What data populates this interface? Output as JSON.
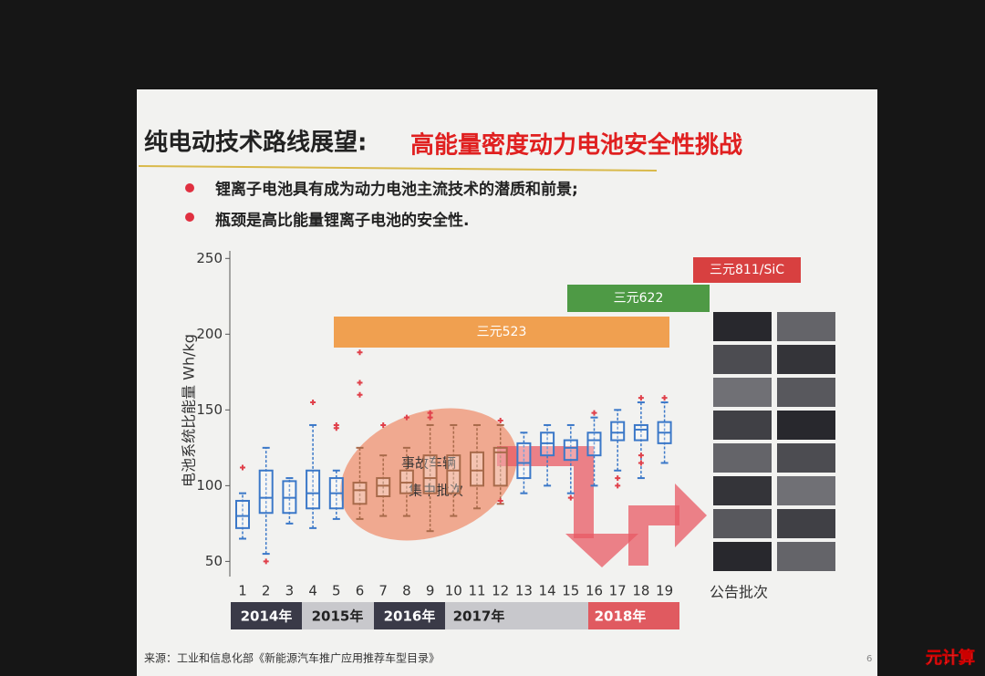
{
  "chart_data": {
    "type": "box",
    "title": "纯电动技术路线展望:",
    "title_highlight": "高能量密度动力电池安全性挑战",
    "bullets": [
      "锂离子电池具有成为动力电池主流技术的潜质和前景;",
      "瓶颈是高比能量锂离子电池的安全性."
    ],
    "y_label": "电池系统比能量 Wh/kg",
    "x_label": "公告批次",
    "annotation": [
      "事故车辆",
      "集中批次"
    ],
    "material_tags": [
      "三元523",
      "三元622",
      "三元811/SiC"
    ],
    "years": [
      "2014年",
      "2015年",
      "2016年",
      "2017年",
      "2018年"
    ],
    "source": "来源：工业和信息化部《新能源汽车推广应用推荐车型目录》",
    "page_number": "6",
    "watermark": "元计算",
    "ylim": [
      40,
      255
    ],
    "yticks": [
      50,
      100,
      150,
      200,
      250
    ],
    "categories": [
      "1",
      "2",
      "3",
      "4",
      "5",
      "6",
      "7",
      "8",
      "9",
      "10",
      "11",
      "12",
      "13",
      "14",
      "15",
      "16",
      "17",
      "18",
      "19"
    ],
    "boxes": [
      {
        "min": 65,
        "q1": 72,
        "median": 80,
        "q3": 90,
        "max": 95,
        "outliers": [
          112
        ],
        "color": "#3b78c8"
      },
      {
        "min": 55,
        "q1": 82,
        "median": 92,
        "q3": 110,
        "max": 125,
        "outliers": [
          50
        ],
        "color": "#3b78c8"
      },
      {
        "min": 75,
        "q1": 82,
        "median": 92,
        "q3": 103,
        "max": 105,
        "outliers": [],
        "color": "#3b78c8"
      },
      {
        "min": 72,
        "q1": 85,
        "median": 95,
        "q3": 110,
        "max": 140,
        "outliers": [
          155
        ],
        "color": "#3b78c8"
      },
      {
        "min": 78,
        "q1": 85,
        "median": 95,
        "q3": 105,
        "max": 110,
        "outliers": [
          138,
          140
        ],
        "color": "#3b78c8"
      },
      {
        "min": 78,
        "q1": 88,
        "median": 97,
        "q3": 102,
        "max": 125,
        "outliers": [
          188,
          168,
          160
        ],
        "color": "#a86a4a"
      },
      {
        "min": 80,
        "q1": 93,
        "median": 100,
        "q3": 105,
        "max": 120,
        "outliers": [
          140
        ],
        "color": "#a86a4a"
      },
      {
        "min": 80,
        "q1": 95,
        "median": 102,
        "q3": 110,
        "max": 125,
        "outliers": [
          145
        ],
        "color": "#a86a4a"
      },
      {
        "min": 70,
        "q1": 95,
        "median": 105,
        "q3": 120,
        "max": 140,
        "outliers": [
          145,
          148
        ],
        "color": "#a86a4a"
      },
      {
        "min": 80,
        "q1": 95,
        "median": 110,
        "q3": 120,
        "max": 140,
        "outliers": [],
        "color": "#a86a4a"
      },
      {
        "min": 85,
        "q1": 100,
        "median": 110,
        "q3": 122,
        "max": 140,
        "outliers": [],
        "color": "#a86a4a"
      },
      {
        "min": 88,
        "q1": 100,
        "median": 122,
        "q3": 125,
        "max": 140,
        "outliers": [
          143,
          90
        ],
        "color": "#a86a4a"
      },
      {
        "min": 95,
        "q1": 105,
        "median": 115,
        "q3": 128,
        "max": 135,
        "outliers": [],
        "color": "#3b78c8"
      },
      {
        "min": 100,
        "q1": 120,
        "median": 128,
        "q3": 135,
        "max": 140,
        "outliers": [],
        "color": "#3b78c8"
      },
      {
        "min": 95,
        "q1": 117,
        "median": 125,
        "q3": 130,
        "max": 140,
        "outliers": [
          92
        ],
        "color": "#3b78c8"
      },
      {
        "min": 100,
        "q1": 120,
        "median": 130,
        "q3": 135,
        "max": 145,
        "outliers": [
          148
        ],
        "color": "#3b78c8"
      },
      {
        "min": 110,
        "q1": 130,
        "median": 135,
        "q3": 142,
        "max": 150,
        "outliers": [
          100,
          105
        ],
        "color": "#3b78c8"
      },
      {
        "min": 105,
        "q1": 130,
        "median": 137,
        "q3": 140,
        "max": 155,
        "outliers": [
          158,
          120,
          115
        ],
        "color": "#3b78c8"
      },
      {
        "min": 115,
        "q1": 128,
        "median": 135,
        "q3": 142,
        "max": 155,
        "outliers": [
          158
        ],
        "color": "#3b78c8"
      }
    ]
  }
}
